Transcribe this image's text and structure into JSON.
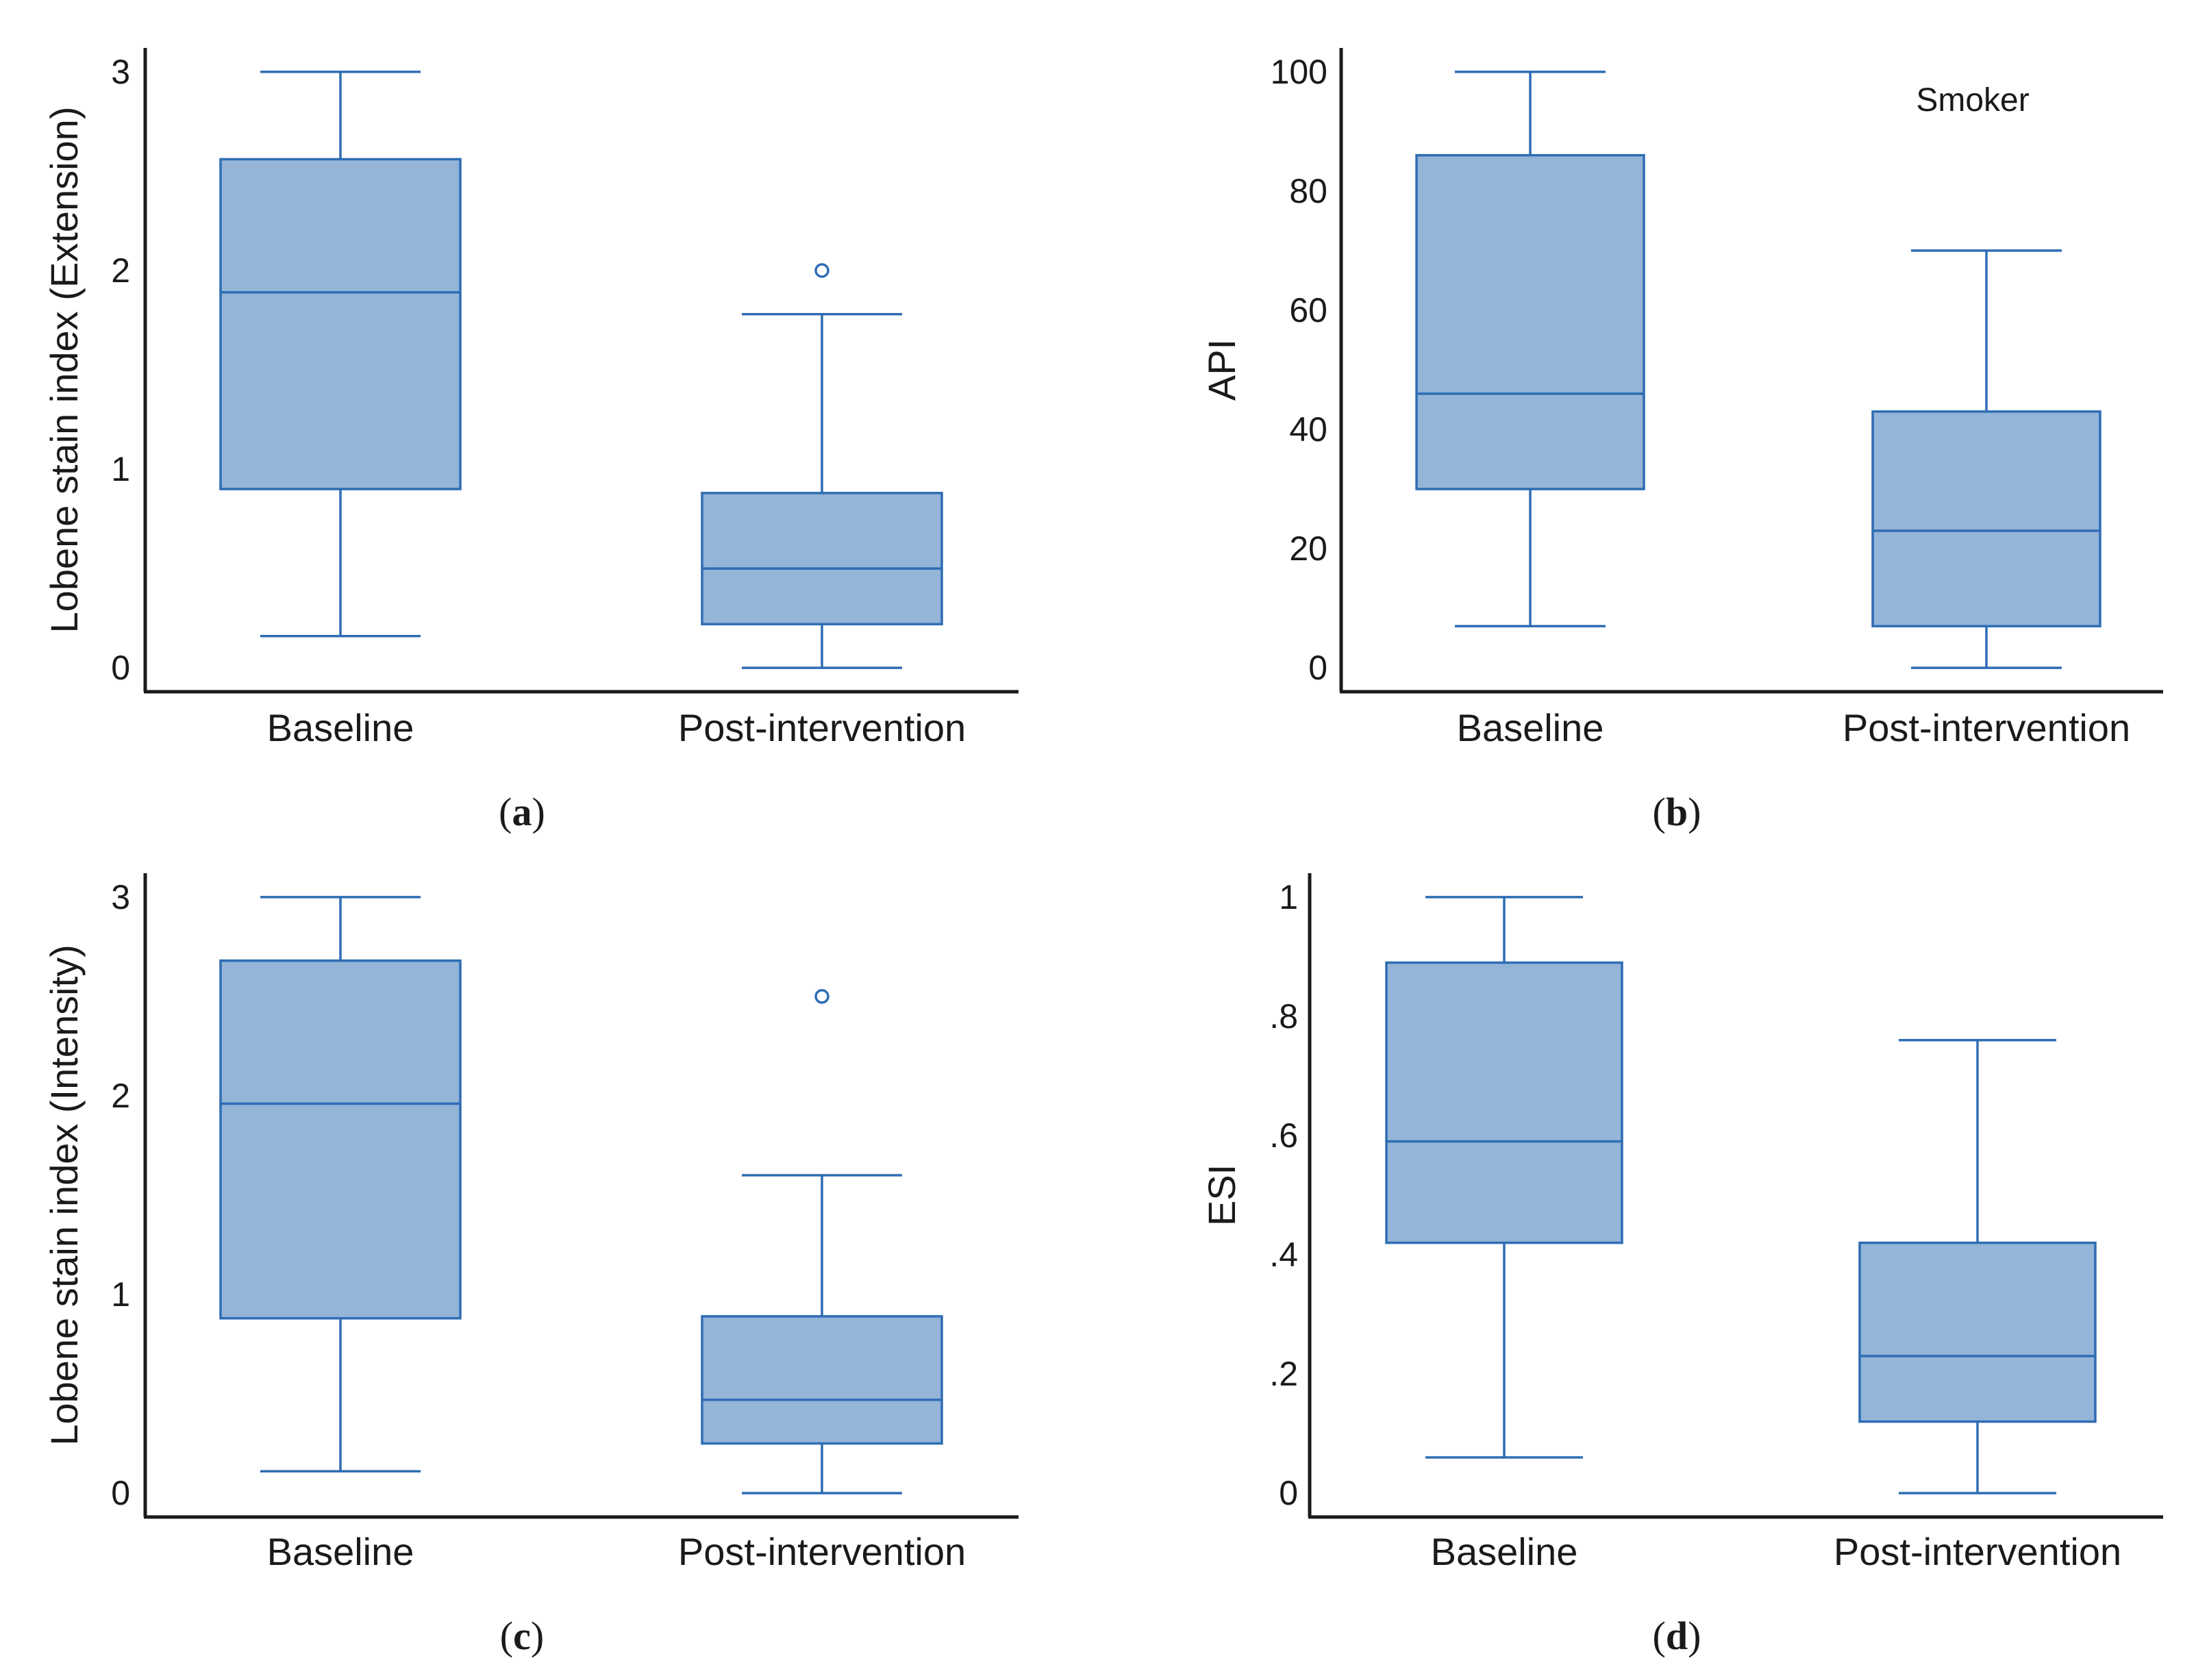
{
  "figure": {
    "colors": {
      "box_fill": "#94b4d8",
      "box_stroke": "#2e6db4",
      "axis": "#1a1a1a",
      "text": "#1a1a1a"
    }
  },
  "chart_data": [
    {
      "id": "a",
      "type": "boxplot",
      "caption_letter": "a",
      "title": "",
      "annotation": "",
      "xlabel": "",
      "ylabel": "Lobene stain index (Extension)",
      "ylim": [
        -0.12,
        3.12
      ],
      "yticks": [
        0,
        1,
        2,
        3
      ],
      "ytick_labels": [
        "0",
        "1",
        "2",
        "3"
      ],
      "categories": [
        "Baseline",
        "Post-intervention"
      ],
      "boxes": [
        {
          "whisker_low": 0.16,
          "q1": 0.9,
          "median": 1.89,
          "q3": 2.56,
          "whisker_high": 3.0,
          "outliers": []
        },
        {
          "whisker_low": 0.0,
          "q1": 0.22,
          "median": 0.5,
          "q3": 0.88,
          "whisker_high": 1.78,
          "outliers": [
            2.0
          ]
        }
      ]
    },
    {
      "id": "b",
      "type": "boxplot",
      "caption_letter": "b",
      "title": "",
      "annotation": "Smoker",
      "xlabel": "",
      "ylabel": "API",
      "ylim": [
        -4,
        104
      ],
      "yticks": [
        0,
        20,
        40,
        60,
        80,
        100
      ],
      "ytick_labels": [
        "0",
        "20",
        "40",
        "60",
        "80",
        "100"
      ],
      "categories": [
        "Baseline",
        "Post-intervention"
      ],
      "boxes": [
        {
          "whisker_low": 7,
          "q1": 30,
          "median": 46,
          "q3": 86,
          "whisker_high": 100,
          "outliers": []
        },
        {
          "whisker_low": 0,
          "q1": 7,
          "median": 23,
          "q3": 43,
          "whisker_high": 70,
          "outliers": []
        }
      ]
    },
    {
      "id": "c",
      "type": "boxplot",
      "caption_letter": "c",
      "title": "",
      "annotation": "",
      "xlabel": "",
      "ylabel": "Lobene stain index (Intensity)",
      "ylim": [
        -0.12,
        3.12
      ],
      "yticks": [
        0,
        1,
        2,
        3
      ],
      "ytick_labels": [
        "0",
        "1",
        "2",
        "3"
      ],
      "categories": [
        "Baseline",
        "Post-intervention"
      ],
      "boxes": [
        {
          "whisker_low": 0.11,
          "q1": 0.88,
          "median": 1.96,
          "q3": 2.68,
          "whisker_high": 3.0,
          "outliers": []
        },
        {
          "whisker_low": 0.0,
          "q1": 0.25,
          "median": 0.47,
          "q3": 0.89,
          "whisker_high": 1.6,
          "outliers": [
            2.5
          ]
        }
      ]
    },
    {
      "id": "d",
      "type": "boxplot",
      "caption_letter": "d",
      "title": "",
      "annotation": "",
      "xlabel": "",
      "ylabel": "ESI",
      "ylim": [
        -0.04,
        1.04
      ],
      "yticks": [
        0,
        0.2,
        0.4,
        0.6,
        0.8,
        1.0
      ],
      "ytick_labels": [
        "0",
        ".2",
        ".4",
        ".6",
        ".8",
        "1"
      ],
      "categories": [
        "Baseline",
        "Post-intervention"
      ],
      "boxes": [
        {
          "whisker_low": 0.06,
          "q1": 0.42,
          "median": 0.59,
          "q3": 0.89,
          "whisker_high": 1.0,
          "outliers": []
        },
        {
          "whisker_low": 0.0,
          "q1": 0.12,
          "median": 0.23,
          "q3": 0.42,
          "whisker_high": 0.76,
          "outliers": []
        }
      ]
    }
  ]
}
